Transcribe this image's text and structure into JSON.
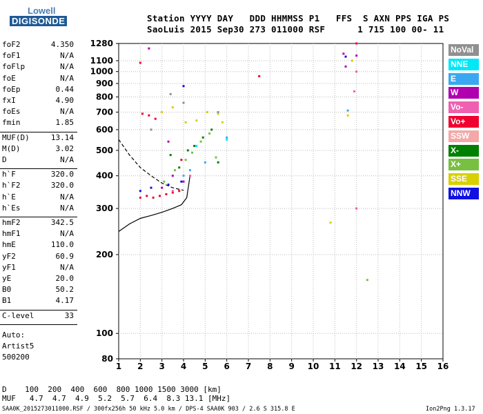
{
  "logo": {
    "top": "Lowell",
    "bottom": "DIGISONDE"
  },
  "header": {
    "line1": "Station YYYY DAY   DDD HHMMSS P1   FFS  S AXN PPS IGA PS",
    "line2": "SaoLuis 2015 Sep30 273 011000 RSF      1 715 100 00- 11"
  },
  "params": [
    {
      "group": [
        [
          "foF2",
          "4.350"
        ],
        [
          "foF1",
          "N/A"
        ],
        [
          "foFlp",
          "N/A"
        ],
        [
          "foE",
          "N/A"
        ],
        [
          "foEp",
          "0.44"
        ],
        [
          "fxI",
          "4.90"
        ],
        [
          "foEs",
          "N/A"
        ],
        [
          "fmin",
          "1.85"
        ]
      ]
    },
    {
      "group": [
        [
          "MUF(D)",
          "13.14"
        ],
        [
          "M(D)",
          "3.02"
        ],
        [
          "D",
          "N/A"
        ]
      ]
    },
    {
      "group": [
        [
          "h`F",
          "320.0"
        ],
        [
          "h`F2",
          "320.0"
        ],
        [
          "h`E",
          "N/A"
        ],
        [
          "h`Es",
          "N/A"
        ]
      ]
    },
    {
      "group": [
        [
          "hmF2",
          "342.5"
        ],
        [
          "hmF1",
          "N/A"
        ],
        [
          "hmE",
          "110.0"
        ],
        [
          "yF2",
          "60.9"
        ],
        [
          "yF1",
          "N/A"
        ],
        [
          "yE",
          "20.0"
        ],
        [
          "B0",
          "50.2"
        ],
        [
          "B1",
          "4.17"
        ]
      ]
    },
    {
      "group": [
        [
          "C-level",
          "33"
        ]
      ]
    }
  ],
  "auto": {
    "l1": "Auto:",
    "l2": "Artist5",
    "l3": "500200"
  },
  "legend": [
    {
      "label": "NoVal",
      "color": "#909090"
    },
    {
      "label": "NNE",
      "color": "#00e8f8"
    },
    {
      "label": "E",
      "color": "#3aa8f0"
    },
    {
      "label": "W",
      "color": "#b000b0"
    },
    {
      "label": "Vo-",
      "color": "#f060b0"
    },
    {
      "label": "Vo+",
      "color": "#f00030"
    },
    {
      "label": "SSW",
      "color": "#f4a8a8"
    },
    {
      "label": "X-",
      "color": "#008000"
    },
    {
      "label": "X+",
      "color": "#78c040"
    },
    {
      "label": "SSE",
      "color": "#d8d000"
    },
    {
      "label": "NNW",
      "color": "#1010e0"
    }
  ],
  "footer": {
    "d_row": "D    100  200  400  600  800 1000 1500 3000 [km]",
    "muf_row": "MUF   4.7  4.7  4.9  5.2  5.7  6.4  8.3 13.1 [MHz]",
    "bottom_left": "SAA0K_2015273011000.RSF / 300fx256h 50 kHz 5.0 km / DPS-4 SAA0K 903 / 2.6 S 315.8 E",
    "bottom_right": "Ion2Png 1.3.17"
  },
  "chart_data": {
    "type": "scatter",
    "title": "",
    "xlabel": "",
    "ylabel": "",
    "xlim": [
      1,
      16
    ],
    "ylim": [
      80,
      1280
    ],
    "y_scale": "log",
    "x_ticks": [
      1,
      2,
      3,
      4,
      5,
      6,
      7,
      8,
      9,
      10,
      11,
      12,
      13,
      14,
      15,
      16
    ],
    "y_ticks": [
      80,
      100,
      200,
      300,
      400,
      500,
      600,
      700,
      800,
      900,
      1000,
      1100,
      1280
    ],
    "grid": "dotted",
    "series": [
      {
        "name": "Vo+",
        "color": "#f00030",
        "points": [
          [
            2.0,
            330
          ],
          [
            2.3,
            335
          ],
          [
            2.6,
            330
          ],
          [
            2.9,
            335
          ],
          [
            3.2,
            340
          ],
          [
            3.5,
            345
          ],
          [
            3.8,
            350
          ],
          [
            2.1,
            690
          ],
          [
            2.4,
            680
          ],
          [
            2.7,
            660
          ],
          [
            3.9,
            460
          ],
          [
            7.5,
            960
          ],
          [
            2.0,
            1080
          ],
          [
            12.0,
            1280
          ]
        ]
      },
      {
        "name": "W",
        "color": "#b000b0",
        "points": [
          [
            2.4,
            1225
          ],
          [
            3.0,
            360
          ],
          [
            3.5,
            400
          ],
          [
            4.0,
            380
          ],
          [
            3.3,
            540
          ],
          [
            11.5,
            1045
          ],
          [
            11.4,
            1170
          ],
          [
            12.0,
            1150
          ]
        ]
      },
      {
        "name": "X-",
        "color": "#008000",
        "points": [
          [
            3.4,
            480
          ],
          [
            3.8,
            430
          ],
          [
            4.2,
            500
          ],
          [
            4.5,
            520
          ],
          [
            4.9,
            560
          ],
          [
            5.3,
            600
          ],
          [
            5.6,
            450
          ]
        ]
      },
      {
        "name": "X+",
        "color": "#78c040",
        "points": [
          [
            3.1,
            380
          ],
          [
            3.6,
            420
          ],
          [
            4.1,
            460
          ],
          [
            4.4,
            490
          ],
          [
            4.8,
            540
          ],
          [
            5.2,
            580
          ],
          [
            5.5,
            470
          ],
          [
            12.5,
            160
          ]
        ]
      },
      {
        "name": "SSE",
        "color": "#d8d000",
        "points": [
          [
            3.0,
            700
          ],
          [
            3.5,
            730
          ],
          [
            4.1,
            640
          ],
          [
            4.6,
            650
          ],
          [
            5.1,
            700
          ],
          [
            5.6,
            690
          ],
          [
            5.8,
            640
          ],
          [
            10.8,
            265
          ],
          [
            11.6,
            680
          ],
          [
            11.8,
            1100
          ]
        ]
      },
      {
        "name": "E",
        "color": "#3aa8f0",
        "points": [
          [
            4.0,
            400
          ],
          [
            4.3,
            420
          ],
          [
            5.0,
            450
          ],
          [
            6.0,
            560
          ],
          [
            11.6,
            710
          ]
        ]
      },
      {
        "name": "NNE",
        "color": "#00e8f8",
        "points": [
          [
            6.0,
            550
          ],
          [
            4.6,
            520
          ]
        ]
      },
      {
        "name": "NNW",
        "color": "#1010e0",
        "points": [
          [
            2.0,
            350
          ],
          [
            2.5,
            360
          ],
          [
            3.3,
            370
          ],
          [
            3.9,
            380
          ],
          [
            11.5,
            1140
          ],
          [
            4.0,
            880
          ]
        ]
      },
      {
        "name": "Vo-",
        "color": "#f060b0",
        "points": [
          [
            3.5,
            350
          ],
          [
            4.3,
            400
          ],
          [
            11.9,
            840
          ],
          [
            12.0,
            300
          ],
          [
            12.0,
            1000
          ]
        ]
      },
      {
        "name": "NoVal",
        "color": "#909090",
        "points": [
          [
            2.5,
            600
          ],
          [
            3.4,
            820
          ],
          [
            4.0,
            760
          ],
          [
            5.6,
            700
          ]
        ]
      }
    ],
    "profile_curves": [
      {
        "name": "lower",
        "points": [
          [
            1.0,
            245
          ],
          [
            1.5,
            262
          ],
          [
            2.0,
            275
          ],
          [
            2.5,
            282
          ],
          [
            3.0,
            290
          ],
          [
            3.5,
            300
          ],
          [
            3.9,
            310
          ],
          [
            4.15,
            330
          ],
          [
            4.3,
            400
          ]
        ]
      },
      {
        "name": "upper",
        "points": [
          [
            1.0,
            550
          ],
          [
            1.5,
            480
          ],
          [
            2.0,
            430
          ],
          [
            2.5,
            400
          ],
          [
            3.0,
            375
          ],
          [
            3.5,
            360
          ],
          [
            4.0,
            352
          ]
        ]
      }
    ]
  }
}
